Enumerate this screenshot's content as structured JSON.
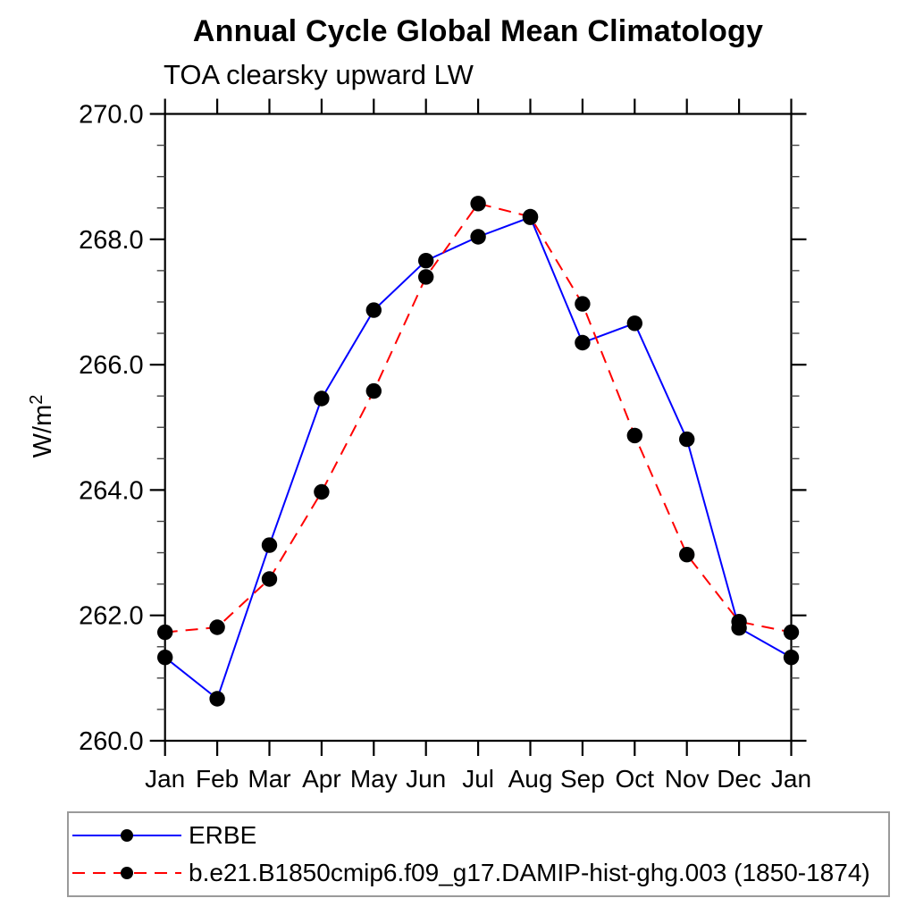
{
  "chart_data": {
    "type": "line",
    "title": "Annual Cycle Global Mean Climatology",
    "subtitle": "TOA clearsky upward LW",
    "ylabel": "W/m",
    "ylabel_sup": "2",
    "xlabel": "",
    "categories": [
      "Jan",
      "Feb",
      "Mar",
      "Apr",
      "May",
      "Jun",
      "Jul",
      "Aug",
      "Sep",
      "Oct",
      "Nov",
      "Dec",
      "Jan"
    ],
    "series": [
      {
        "name": "ERBE",
        "color": "#0000ff",
        "line_style": "solid",
        "marker": "filled-circle",
        "marker_color": "#000000",
        "values": [
          261.33,
          260.67,
          263.12,
          265.46,
          266.87,
          267.66,
          268.04,
          268.35,
          266.35,
          266.66,
          264.81,
          261.8,
          261.33
        ]
      },
      {
        "name": "b.e21.B1850cmip6.f09_g17.DAMIP-hist-ghg.003 (1850-1874)",
        "color": "#ff0000",
        "line_style": "dashed",
        "marker": "filled-circle",
        "marker_color": "#000000",
        "values": [
          261.73,
          261.81,
          262.58,
          263.97,
          265.58,
          267.4,
          268.57,
          268.36,
          266.97,
          264.87,
          262.97,
          261.9,
          261.73
        ]
      }
    ],
    "ylim": [
      260.0,
      270.0
    ],
    "y_major_step": 2.0,
    "y_minor_step": 0.5,
    "y_tick_decimals": 1,
    "y_tick_labels": [
      "260.0",
      "262.0",
      "264.0",
      "266.0",
      "268.0",
      "270.0"
    ],
    "grid": false,
    "legend_position": "bottom-left",
    "axis_color": "#000000"
  }
}
